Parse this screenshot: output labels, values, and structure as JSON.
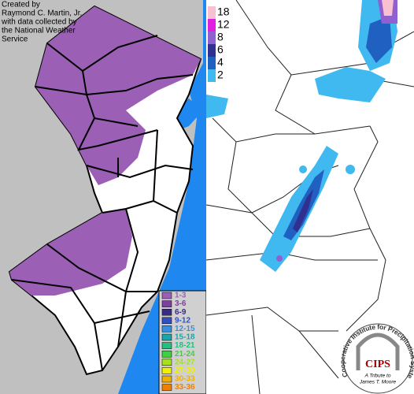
{
  "credit": [
    "Created by",
    "Raymond C. Martin, Jr.",
    "with data collected by",
    "the National Weather",
    "Service"
  ],
  "nj_legend": {
    "items": [
      {
        "label": "1-3",
        "color": "#9b5fb5"
      },
      {
        "label": "3-6",
        "color": "#7b3f9e"
      },
      {
        "label": "6-9",
        "color": "#3a2a88"
      },
      {
        "label": "9-12",
        "color": "#2f4fc8"
      },
      {
        "label": "12-15",
        "color": "#3a8ee0"
      },
      {
        "label": "15-18",
        "color": "#1aa6a8"
      },
      {
        "label": "18-21",
        "color": "#20c080"
      },
      {
        "label": "21-24",
        "color": "#40d040"
      },
      {
        "label": "24-27",
        "color": "#a8e020"
      },
      {
        "label": "27-30",
        "color": "#f0f000"
      },
      {
        "label": "30-33",
        "color": "#f0b000"
      },
      {
        "label": "33-36",
        "color": "#f08000"
      }
    ]
  },
  "snow_legend": {
    "items": [
      {
        "value": 18,
        "color": "#f8c0d0"
      },
      {
        "value": 12,
        "color": "#e020e0"
      },
      {
        "value": 8,
        "color": "#9060d0"
      },
      {
        "value": 6,
        "color": "#303090"
      },
      {
        "value": 4,
        "color": "#2060c0"
      },
      {
        "value": 2,
        "color": "#40b8f0"
      }
    ]
  },
  "logo": {
    "arc_text": "Cooperative Institute for Precipitation Systems",
    "name": "CIPS",
    "tribute": [
      "A Tribute to",
      "James T. Moore"
    ]
  }
}
